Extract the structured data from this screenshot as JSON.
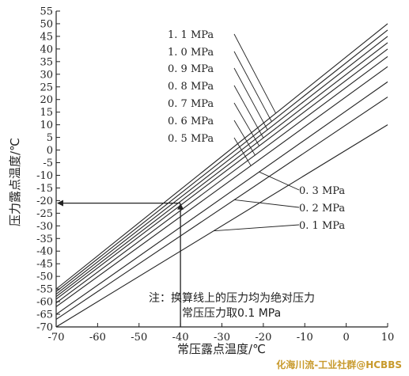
{
  "chart_data": {
    "type": "line",
    "xlabel": "常压露点温度/℃",
    "ylabel": "压力露点温度/℃",
    "xlim": [
      -70,
      10
    ],
    "ylim": [
      -70,
      55
    ],
    "x_ticks": [
      "-70",
      "-60",
      "-50",
      "-40",
      "-30",
      "-20",
      "-10",
      "0",
      "10"
    ],
    "y_ticks": [
      "-70",
      "-65",
      "-60",
      "-55",
      "-50",
      "-45",
      "-40",
      "-35",
      "-30",
      "-25",
      "-20",
      "-15",
      "-10",
      "-5",
      "0",
      "5",
      "10",
      "15",
      "20",
      "25",
      "30",
      "35",
      "40",
      "45",
      "50",
      "55"
    ],
    "series": [
      {
        "name": "0.1 MPa",
        "label": "0. 1  MPa",
        "x": [
          -70,
          10
        ],
        "y": [
          -70,
          10
        ]
      },
      {
        "name": "0.2 MPa",
        "label": "0. 2  MPa",
        "x": [
          -70,
          10
        ],
        "y": [
          -67,
          21
        ]
      },
      {
        "name": "0.3 MPa",
        "label": "0. 3  MPa",
        "x": [
          -70,
          10
        ],
        "y": [
          -65,
          27
        ]
      },
      {
        "name": "0.5 MPa",
        "label": "0. 5  MPa",
        "x": [
          -70,
          10
        ],
        "y": [
          -62,
          33
        ]
      },
      {
        "name": "0.6 MPa",
        "label": "0. 6  MPa",
        "x": [
          -70,
          10
        ],
        "y": [
          -60.5,
          37
        ]
      },
      {
        "name": "0.7 MPa",
        "label": "0. 7  MPa",
        "x": [
          -70,
          10
        ],
        "y": [
          -59,
          40
        ]
      },
      {
        "name": "0.8 MPa",
        "label": "0. 8  MPa",
        "x": [
          -70,
          10
        ],
        "y": [
          -58,
          42.5
        ]
      },
      {
        "name": "0.9 MPa",
        "label": "0. 9  MPa",
        "x": [
          -70,
          10
        ],
        "y": [
          -57,
          45
        ]
      },
      {
        "name": "1.0 MPa",
        "label": "1. 0  MPa",
        "x": [
          -70,
          10
        ],
        "y": [
          -56,
          47.5
        ]
      },
      {
        "name": "1.1 MPa",
        "label": "1. 1  MPa",
        "x": [
          -70,
          10
        ],
        "y": [
          -55,
          50
        ]
      }
    ],
    "guide": {
      "x": -40,
      "y": -21
    },
    "annotation": [
      "注：换算线上的压力均为绝对压力",
      "常压压力取0.1 MPa"
    ],
    "watermark": "化海川流-工业社群@HCBBS",
    "grid": false
  }
}
